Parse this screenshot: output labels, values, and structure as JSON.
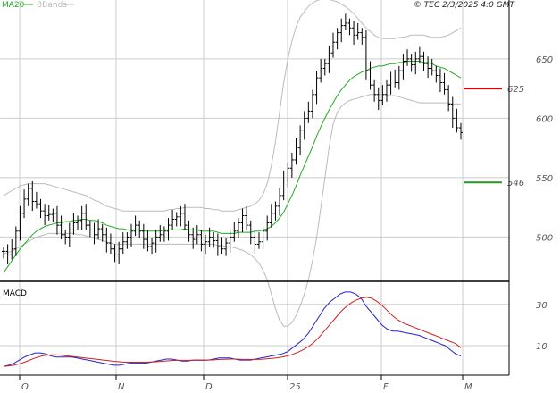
{
  "legend": {
    "ma20_label": "MA20",
    "bbands_label": "BBands",
    "ma20_color": "#22aa22",
    "bbands_color": "#bbbbbb"
  },
  "copyright": "© TEC 2/3/2025 4:0 GMT",
  "macd_label": "MACD",
  "colors": {
    "bar": "#000000",
    "grid": "#cccccc",
    "macd_line": "#2222cc",
    "signal_line": "#cc2222",
    "resistance": "#dd0000",
    "support": "#229922",
    "panel_border": "#000000"
  },
  "chart_data": [
    {
      "type": "ohlc",
      "title": "",
      "x_ticks": [
        "O",
        "N",
        "D",
        "25",
        "F",
        "M"
      ],
      "y_ticks": [
        "650",
        "600",
        "550",
        "500"
      ],
      "ylim": [
        468,
        695
      ],
      "grid": true,
      "overlays": [
        "MA20",
        "BBands"
      ],
      "levels": [
        {
          "label": "625",
          "value": 625,
          "color": "#dd0000"
        },
        {
          "label": "546",
          "value": 546,
          "color": "#229922"
        }
      ],
      "closes": [
        488,
        485,
        490,
        505,
        520,
        532,
        541,
        530,
        528,
        522,
        518,
        519,
        520,
        510,
        502,
        500,
        506,
        512,
        514,
        520,
        510,
        506,
        502,
        507,
        502,
        495,
        490,
        485,
        490,
        496,
        500,
        505,
        510,
        505,
        498,
        492,
        495,
        500,
        502,
        505,
        510,
        515,
        517,
        520,
        510,
        502,
        498,
        502,
        494,
        496,
        500,
        497,
        492,
        490,
        495,
        500,
        505,
        512,
        518,
        510,
        500,
        494,
        496,
        505,
        512,
        520,
        526,
        535,
        548,
        558,
        565,
        575,
        590,
        600,
        606,
        620,
        634,
        642,
        646,
        655,
        664,
        672,
        678,
        680,
        676,
        670,
        672,
        668,
        640,
        628,
        620,
        615,
        620,
        628,
        633,
        630,
        640,
        648,
        650,
        645,
        650,
        652,
        646,
        642,
        640,
        636,
        630,
        624,
        612,
        600,
        592,
        588
      ],
      "ma20": [
        470,
        475,
        480,
        485,
        490,
        494,
        498,
        502,
        505,
        507,
        509,
        510,
        511,
        512,
        512,
        513,
        513,
        514,
        514,
        515,
        515,
        514,
        514,
        513,
        512,
        510,
        509,
        508,
        507,
        507,
        506,
        506,
        506,
        506,
        505,
        505,
        505,
        505,
        505,
        506,
        506,
        506,
        506,
        506,
        507,
        506,
        506,
        506,
        505,
        505,
        505,
        505,
        504,
        503,
        503,
        503,
        503,
        504,
        504,
        504,
        504,
        505,
        505,
        506,
        507,
        509,
        512,
        516,
        521,
        528,
        535,
        543,
        552,
        560,
        568,
        576,
        585,
        593,
        600,
        607,
        613,
        619,
        624,
        628,
        632,
        635,
        637,
        639,
        640,
        642,
        643,
        644,
        644,
        645,
        646,
        646,
        647,
        647,
        648,
        648,
        648,
        648,
        647,
        647,
        646,
        644,
        643,
        642,
        640,
        638,
        636,
        634
      ],
      "bb_upper": [
        535,
        537,
        539,
        541,
        543,
        544,
        545,
        545,
        545,
        545,
        545,
        544,
        543,
        542,
        541,
        540,
        539,
        538,
        537,
        536,
        535,
        533,
        531,
        530,
        528,
        526,
        525,
        524,
        523,
        522,
        522,
        522,
        522,
        522,
        522,
        522,
        522,
        522,
        522,
        522,
        523,
        523,
        524,
        524,
        525,
        525,
        525,
        525,
        525,
        524,
        524,
        523,
        523,
        522,
        522,
        522,
        522,
        523,
        524,
        525,
        526,
        528,
        531,
        536,
        545,
        560,
        580,
        605,
        630,
        650,
        665,
        677,
        685,
        690,
        694,
        697,
        699,
        700,
        700,
        700,
        699,
        698,
        696,
        694,
        691,
        688,
        684,
        680,
        676,
        673,
        670,
        668,
        667,
        667,
        667,
        667,
        668,
        668,
        669,
        670,
        670,
        670,
        670,
        669,
        668,
        668,
        668,
        669,
        670,
        672,
        674,
        676
      ],
      "bb_lower": [
        486,
        487,
        488,
        490,
        492,
        494,
        496,
        498,
        500,
        501,
        502,
        503,
        503,
        503,
        503,
        503,
        503,
        503,
        502,
        502,
        501,
        500,
        499,
        498,
        497,
        496,
        495,
        494,
        494,
        494,
        494,
        494,
        494,
        494,
        494,
        494,
        494,
        494,
        494,
        494,
        494,
        494,
        494,
        494,
        494,
        494,
        494,
        494,
        494,
        494,
        494,
        494,
        493,
        493,
        492,
        492,
        491,
        490,
        489,
        487,
        485,
        482,
        478,
        472,
        464,
        452,
        440,
        430,
        425,
        425,
        428,
        434,
        442,
        452,
        464,
        480,
        500,
        525,
        550,
        575,
        595,
        605,
        610,
        613,
        615,
        616,
        617,
        618,
        619,
        620,
        620,
        620,
        620,
        620,
        619,
        619,
        618,
        617,
        616,
        615,
        614,
        613,
        613,
        613,
        613,
        613,
        613,
        613,
        613,
        612,
        612,
        612
      ]
    },
    {
      "type": "line",
      "title": "MACD",
      "y_ticks": [
        "30",
        "10"
      ],
      "ylim": [
        -3,
        39
      ],
      "grid": true,
      "series": [
        {
          "name": "MACD",
          "color": "#2222cc",
          "values": [
            0,
            0.5,
            1.5,
            3,
            4.5,
            5.5,
            6.5,
            6.5,
            6,
            5,
            4.5,
            4.5,
            4.5,
            4.5,
            4,
            3.5,
            3,
            2.5,
            2,
            1.5,
            1,
            0.5,
            0.5,
            1,
            1.5,
            1.5,
            1.5,
            1.5,
            2,
            2.5,
            3,
            3.5,
            3.5,
            3,
            2.5,
            2.5,
            3,
            3,
            3,
            3,
            3.5,
            4,
            4,
            4,
            3.5,
            3,
            3,
            3,
            3.5,
            4,
            4.5,
            5,
            5.5,
            6,
            7,
            9,
            11,
            13,
            16,
            20,
            24,
            28,
            31,
            33,
            35,
            36,
            36,
            35,
            33,
            29,
            26,
            23,
            20,
            18,
            17,
            17,
            16.5,
            16,
            15.5,
            15,
            14,
            13,
            12,
            11,
            10,
            8,
            6,
            5
          ]
        },
        {
          "name": "Signal",
          "color": "#cc2222",
          "values": [
            0,
            0.2,
            0.6,
            1.2,
            2,
            3,
            4,
            4.8,
            5.3,
            5.5,
            5.5,
            5.3,
            5,
            4.8,
            4.5,
            4.2,
            3.9,
            3.6,
            3.3,
            3,
            2.7,
            2.4,
            2.2,
            2,
            2,
            2,
            2,
            2,
            2.1,
            2.2,
            2.4,
            2.6,
            2.8,
            2.9,
            2.9,
            2.9,
            2.9,
            2.9,
            2.9,
            3,
            3.1,
            3.3,
            3.4,
            3.5,
            3.5,
            3.4,
            3.3,
            3.3,
            3.3,
            3.4,
            3.6,
            3.8,
            4.1,
            4.5,
            5,
            5.8,
            6.8,
            8,
            9.5,
            11.5,
            14,
            17,
            20,
            23,
            26,
            28.5,
            30.5,
            32,
            33,
            33.5,
            33,
            31.5,
            29.5,
            27,
            24.5,
            22.5,
            21,
            20,
            19,
            18,
            17,
            16,
            15,
            14,
            13,
            12,
            11,
            9
          ]
        }
      ]
    }
  ]
}
